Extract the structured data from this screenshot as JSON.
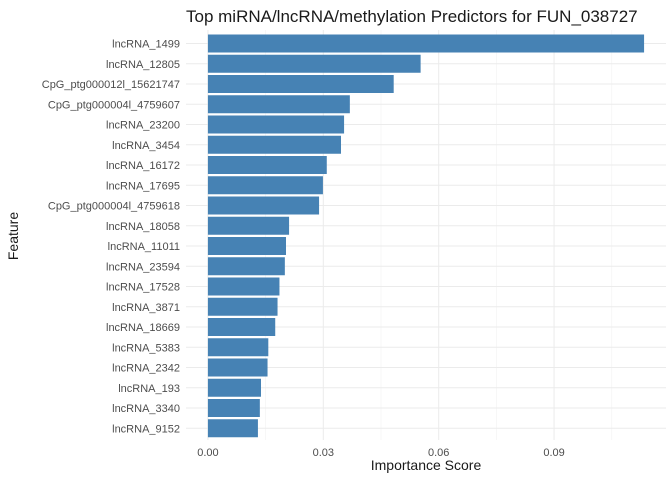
{
  "chart_data": {
    "type": "bar",
    "orientation": "horizontal",
    "title": "Top miRNA/lncRNA/methylation Predictors for FUN_038727",
    "xlabel": "Importance Score",
    "ylabel": "Feature",
    "categories": [
      "lncRNA_1499",
      "lncRNA_12805",
      "CpG_ptg000012l_15621747",
      "CpG_ptg000004l_4759607",
      "lncRNA_23200",
      "lncRNA_3454",
      "lncRNA_16172",
      "lncRNA_17695",
      "CpG_ptg000004l_4759618",
      "lncRNA_18058",
      "lncRNA_11011",
      "lncRNA_23594",
      "lncRNA_17528",
      "lncRNA_3871",
      "lncRNA_18669",
      "lncRNA_5383",
      "lncRNA_2342",
      "lncRNA_193",
      "lncRNA_3340",
      "lncRNA_9152"
    ],
    "values": [
      0.1134,
      0.0553,
      0.0483,
      0.0369,
      0.0354,
      0.0346,
      0.0309,
      0.0299,
      0.0289,
      0.0211,
      0.0203,
      0.02,
      0.0186,
      0.0181,
      0.0175,
      0.0157,
      0.0155,
      0.0138,
      0.0135,
      0.013
    ],
    "xticks": [
      0.0,
      0.03,
      0.06,
      0.09
    ],
    "xtick_labels": [
      "0.00",
      "0.03",
      "0.06",
      "0.09"
    ],
    "xlim": [
      -0.0057,
      0.1191
    ],
    "grid": true,
    "bar_color": "#4682b4"
  }
}
